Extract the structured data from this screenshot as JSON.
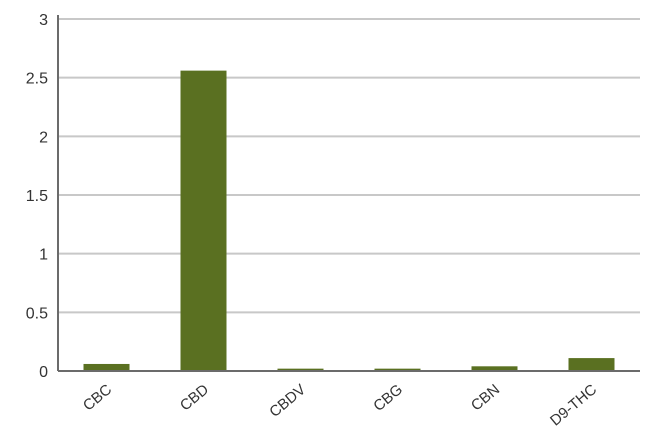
{
  "chart_data": {
    "type": "bar",
    "title": "",
    "xlabel": "",
    "ylabel": "",
    "categories": [
      "CBC",
      "CBD",
      "CBDV",
      "CBG",
      "CBN",
      "D9-THC"
    ],
    "values": [
      0.06,
      2.56,
      0.02,
      0.02,
      0.04,
      0.11
    ],
    "ylim": [
      0,
      3
    ],
    "yticks": [
      0,
      0.5,
      1,
      1.5,
      2,
      2.5,
      3
    ],
    "ytick_labels": [
      "0",
      "0.5",
      "1",
      "1.5",
      "2",
      "2.5",
      "3"
    ],
    "grid": true,
    "legend": "none",
    "colors": {
      "bar": "#5a7021",
      "grid": "#c8c8c8",
      "axis": "#6b6b6b",
      "text": "#333333"
    }
  }
}
